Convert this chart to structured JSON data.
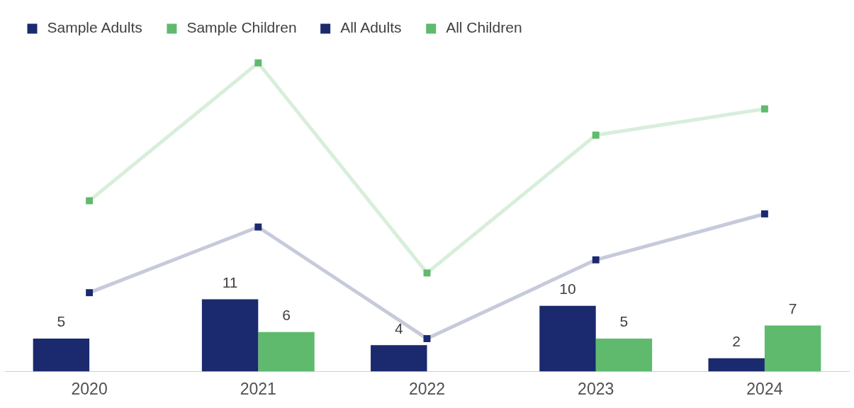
{
  "chart_data": {
    "type": "bar",
    "categories": [
      "2020",
      "2021",
      "2022",
      "2023",
      "2024"
    ],
    "series": [
      {
        "name": "Sample Adults",
        "color": "#1b2a6e",
        "values": [
          5,
          11,
          4,
          10,
          2
        ],
        "value_labels": [
          "5",
          "11",
          "4",
          "10",
          "2"
        ]
      },
      {
        "name": "Sample Children",
        "color": "#5fba6e",
        "values": [
          null,
          6,
          null,
          5,
          7
        ],
        "value_labels": [
          null,
          "6",
          null,
          "5",
          "7"
        ]
      },
      {
        "name": "All Adults",
        "type": "line",
        "color": "#1b2a6e",
        "values": [
          12,
          22,
          5,
          17,
          24
        ]
      },
      {
        "name": "All Children",
        "type": "line",
        "color": "#5fba6e",
        "values": [
          26,
          47,
          15,
          36,
          40
        ]
      }
    ],
    "tick_labels": "x",
    "grid": false,
    "legend": "top left",
    "marker": "square"
  }
}
